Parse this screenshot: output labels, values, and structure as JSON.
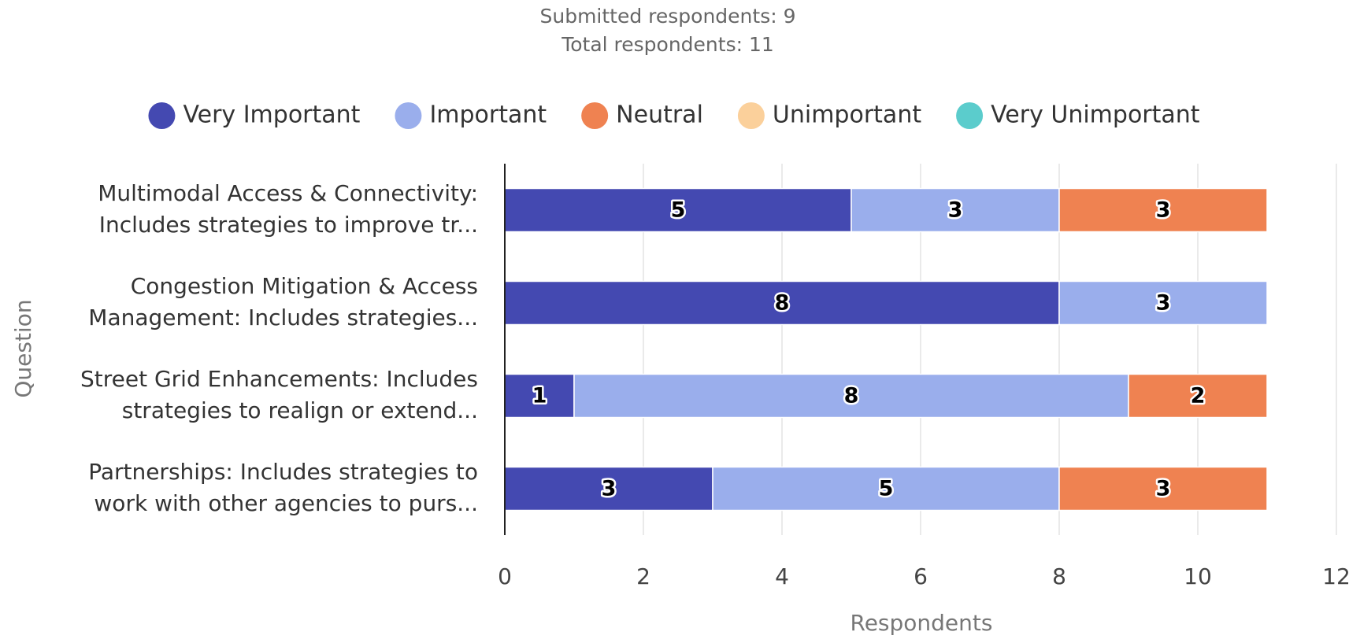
{
  "chart_data": {
    "type": "stacked_bar_horizontal",
    "subtitle": [
      "Submitted respondents: 9",
      "Total respondents: 11"
    ],
    "categories": [
      [
        "Multimodal Access & Connectivity:",
        "Includes strategies to improve tr..."
      ],
      [
        "Congestion Mitigation & Access",
        "Management: Includes strategies..."
      ],
      [
        "Street Grid Enhancements: Includes",
        "strategies to realign or extend..."
      ],
      [
        "Partnerships: Includes strategies to",
        "work with other agencies to purs..."
      ]
    ],
    "series": [
      {
        "name": "Very Important",
        "color": "#4449b1",
        "values": [
          5,
          8,
          1,
          3
        ]
      },
      {
        "name": "Important",
        "color": "#9aaeec",
        "values": [
          3,
          3,
          8,
          5
        ]
      },
      {
        "name": "Neutral",
        "color": "#ef8251",
        "values": [
          3,
          0,
          2,
          3
        ]
      },
      {
        "name": "Unimportant",
        "color": "#fbd09b",
        "values": [
          0,
          0,
          0,
          0
        ]
      },
      {
        "name": "Very Unimportant",
        "color": "#5bcccc",
        "values": [
          0,
          0,
          0,
          0
        ]
      }
    ],
    "xlabel": "Respondents",
    "ylabel": "Question",
    "xlim": [
      0,
      12
    ],
    "xticks": [
      0,
      2,
      4,
      6,
      8,
      10,
      12
    ],
    "grid": true,
    "legend": "top"
  }
}
